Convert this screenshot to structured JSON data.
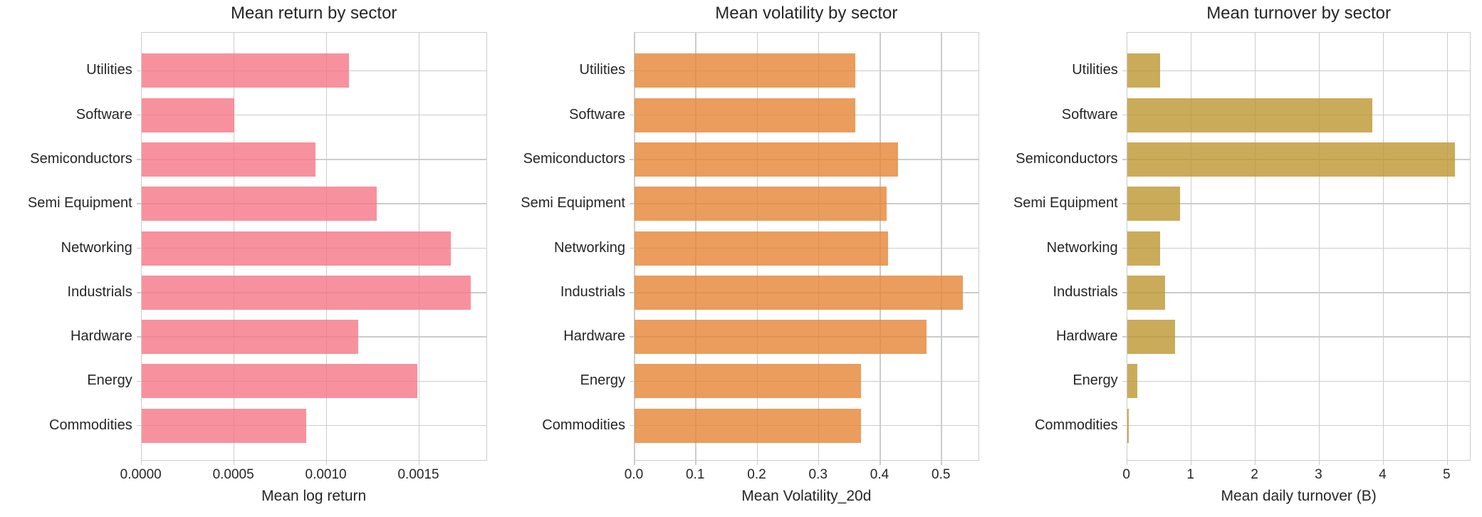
{
  "figure": {
    "background_color": "#ffffff",
    "grid_color": "#cccccc",
    "text_color": "#262626"
  },
  "chart_data": [
    {
      "type": "bar",
      "orientation": "horizontal",
      "title": "Mean return by sector",
      "xlabel": "Mean log return",
      "categories": [
        "Utilities",
        "Software",
        "Semiconductors",
        "Semi Equipment",
        "Networking",
        "Industrials",
        "Hardware",
        "Energy",
        "Commodities"
      ],
      "values": [
        0.00112,
        0.0005,
        0.00094,
        0.00127,
        0.00167,
        0.00178,
        0.00117,
        0.00149,
        0.00089
      ],
      "xlim": [
        0,
        0.00187
      ],
      "xticks": [
        0,
        0.0005,
        0.001,
        0.0015
      ],
      "xtick_labels": [
        "0.0000",
        "0.0005",
        "0.0010",
        "0.0015"
      ],
      "bar_color": "#F67586",
      "bar_alpha": 0.8,
      "grid": true,
      "legend": null
    },
    {
      "type": "bar",
      "orientation": "horizontal",
      "title": "Mean volatility by sector",
      "xlabel": "Mean Volatility_20d",
      "categories": [
        "Utilities",
        "Software",
        "Semiconductors",
        "Semi Equipment",
        "Networking",
        "Industrials",
        "Hardware",
        "Energy",
        "Commodities"
      ],
      "values": [
        0.36,
        0.36,
        0.429,
        0.411,
        0.413,
        0.535,
        0.475,
        0.369,
        0.369
      ],
      "xlim": [
        0,
        0.562
      ],
      "xticks": [
        0,
        0.1,
        0.2,
        0.3,
        0.4,
        0.5
      ],
      "xtick_labels": [
        "0.0",
        "0.1",
        "0.2",
        "0.3",
        "0.4",
        "0.5"
      ],
      "bar_color": "#E58533",
      "bar_alpha": 0.8,
      "grid": true,
      "legend": null
    },
    {
      "type": "bar",
      "orientation": "horizontal",
      "title": "Mean turnover by sector",
      "xlabel": "Mean daily turnover (B)",
      "categories": [
        "Utilities",
        "Software",
        "Semiconductors",
        "Semi Equipment",
        "Networking",
        "Industrials",
        "Hardware",
        "Energy",
        "Commodities"
      ],
      "values": [
        0.52,
        3.83,
        5.12,
        0.83,
        0.51,
        0.59,
        0.75,
        0.16,
        0.03
      ],
      "xlim": [
        0,
        5.38
      ],
      "xticks": [
        0,
        1,
        2,
        3,
        4,
        5
      ],
      "xtick_labels": [
        "0",
        "1",
        "2",
        "3",
        "4",
        "5"
      ],
      "bar_color": "#BD962F",
      "bar_alpha": 0.8,
      "grid": true,
      "legend": null
    }
  ]
}
